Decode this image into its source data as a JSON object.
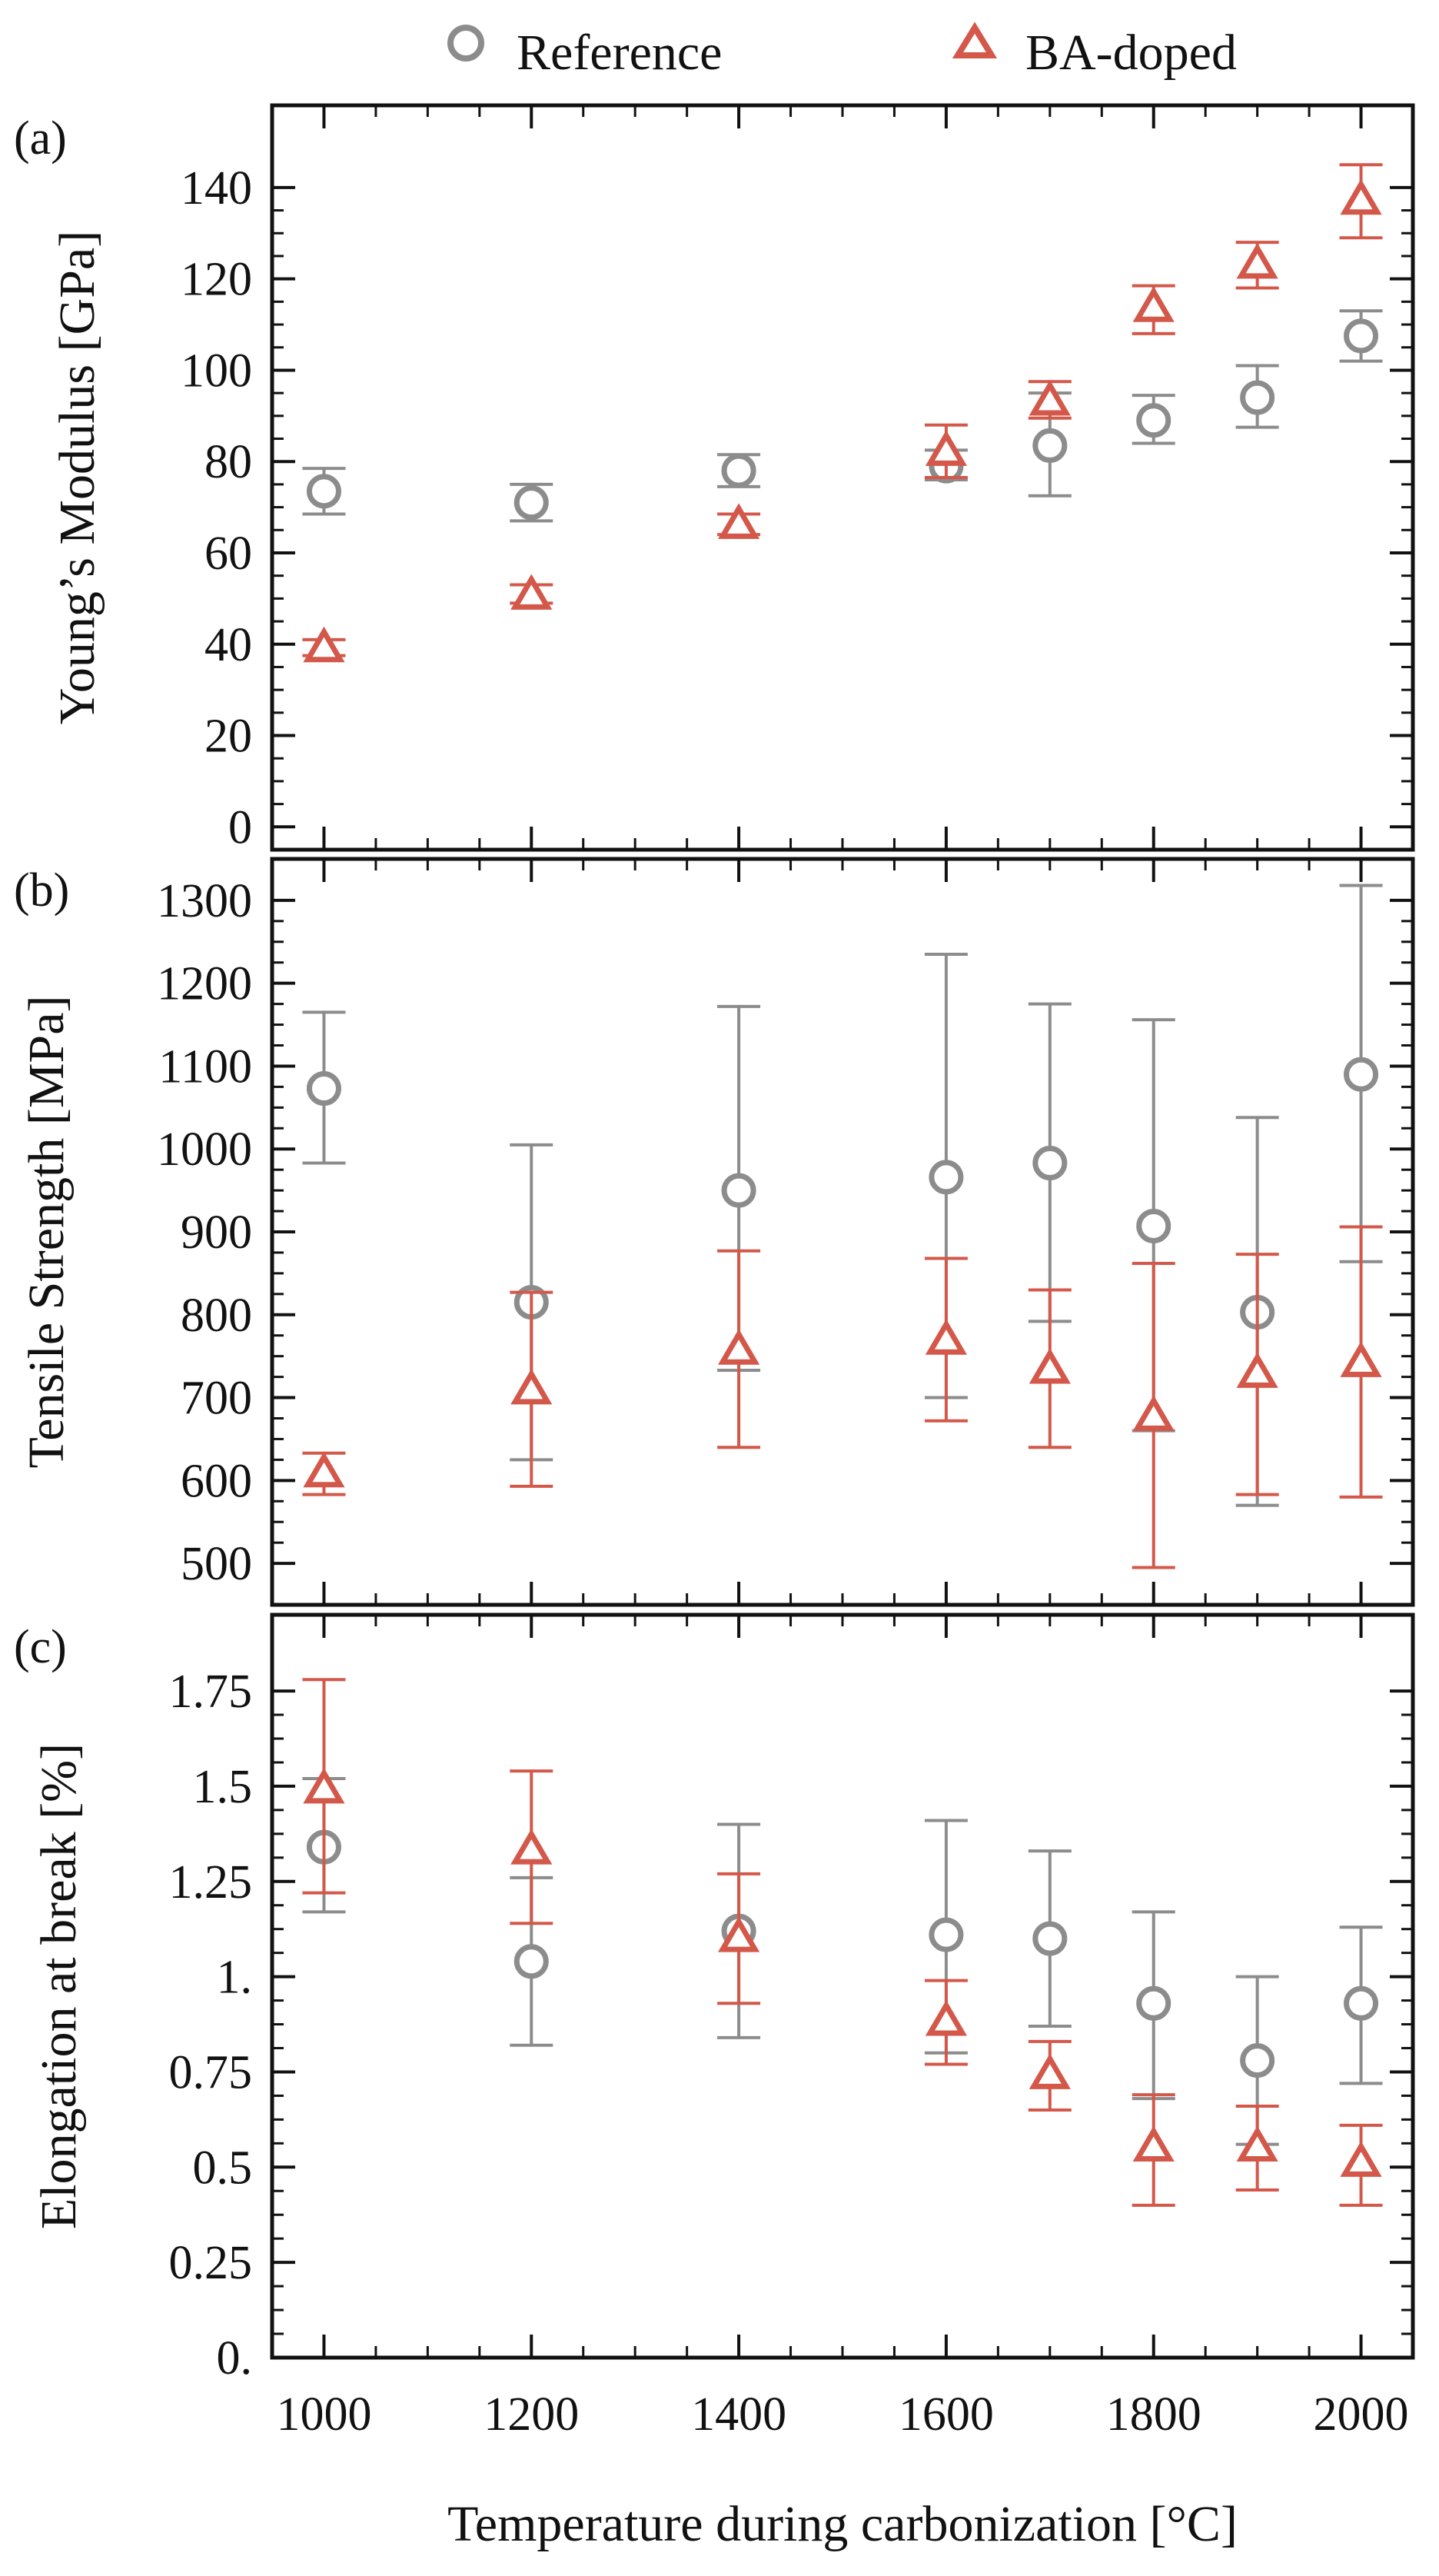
{
  "legend": {
    "reference_label": "Reference",
    "ba_label": "BA-doped"
  },
  "colors": {
    "reference": "#8c8c8c",
    "ba_doped": "#d4584a",
    "axes": "#111111"
  },
  "xaxis": {
    "label": "Temperature during carbonization [°C]",
    "ticks": [
      1000,
      1200,
      1400,
      1600,
      1800,
      2000
    ],
    "tick_labels": [
      "1000",
      "1200",
      "1400",
      "1600",
      "1800",
      "2000"
    ],
    "xlim": [
      950,
      2050
    ]
  },
  "chart_data": [
    {
      "type": "scatter",
      "panel_label": "(a)",
      "ylabel": "Young’s Modulus [GPa]",
      "ylim": [
        -5,
        158
      ],
      "yticks": [
        0,
        20,
        40,
        60,
        80,
        100,
        120,
        140
      ],
      "ytick_labels": [
        "0",
        "20",
        "40",
        "60",
        "80",
        "100",
        "120",
        "140"
      ],
      "x": [
        1000,
        1200,
        1400,
        1600,
        1700,
        1800,
        1900,
        2000
      ],
      "series": [
        {
          "name": "Reference",
          "marker": "circle",
          "values": [
            73.5,
            71,
            78,
            79,
            83.5,
            89,
            94,
            107.5
          ],
          "err_low": [
            68.5,
            67,
            74.5,
            76,
            72.5,
            84,
            87.5,
            102
          ],
          "err_high": [
            78.5,
            75,
            81.5,
            82.5,
            95,
            94.5,
            101,
            113
          ]
        },
        {
          "name": "BA-doped",
          "marker": "triangle",
          "values": [
            39,
            50.5,
            66,
            82,
            93,
            113.5,
            123,
            137
          ],
          "err_low": [
            37.5,
            49,
            64,
            76.5,
            89.5,
            108,
            118,
            129
          ],
          "err_high": [
            41,
            53,
            68.5,
            88,
            97.5,
            118.5,
            128,
            145
          ]
        }
      ]
    },
    {
      "type": "scatter",
      "panel_label": "(b)",
      "ylabel": "Tensile Strength [MPa]",
      "ylim": [
        450,
        1350
      ],
      "yticks": [
        500,
        600,
        700,
        800,
        900,
        1000,
        1100,
        1200,
        1300
      ],
      "ytick_labels": [
        "500",
        "600",
        "700",
        "800",
        "900",
        "1000",
        "1100",
        "1200",
        "1300"
      ],
      "x": [
        1000,
        1200,
        1400,
        1600,
        1700,
        1800,
        1900,
        2000
      ],
      "series": [
        {
          "name": "Reference",
          "marker": "circle",
          "values": [
            1073,
            815,
            950,
            966,
            983,
            907,
            803,
            1090
          ],
          "err_low": [
            983,
            625,
            733,
            700,
            792,
            660,
            570,
            864
          ],
          "err_high": [
            1165,
            1005,
            1172,
            1235,
            1175,
            1156,
            1038,
            1318
          ]
        },
        {
          "name": "BA-doped",
          "marker": "triangle",
          "values": [
            608,
            708,
            756,
            768,
            733,
            676,
            728,
            741
          ],
          "err_low": [
            583,
            593,
            640,
            672,
            640,
            495,
            583,
            580
          ],
          "err_high": [
            633,
            827,
            877,
            868,
            830,
            862,
            873,
            906
          ]
        }
      ]
    },
    {
      "type": "scatter",
      "panel_label": "(c)",
      "ylabel": "Elongation at break [%]",
      "ylim": [
        0,
        1.95
      ],
      "yticks": [
        0,
        0.25,
        0.5,
        0.75,
        1,
        1.25,
        1.5,
        1.75
      ],
      "ytick_labels": [
        "0.",
        "0.25",
        "0.5",
        "0.75",
        "1.",
        "1.25",
        "1.5",
        "1.75"
      ],
      "x": [
        1000,
        1200,
        1400,
        1600,
        1700,
        1800,
        1900,
        2000
      ],
      "series": [
        {
          "name": "Reference",
          "marker": "circle",
          "values": [
            1.34,
            1.04,
            1.12,
            1.11,
            1.1,
            0.93,
            0.78,
            0.93
          ],
          "err_low": [
            1.17,
            0.82,
            0.84,
            0.8,
            0.87,
            0.68,
            0.56,
            0.72
          ],
          "err_high": [
            1.52,
            1.26,
            1.4,
            1.41,
            1.33,
            1.17,
            1.0,
            1.13
          ]
        },
        {
          "name": "BA-doped",
          "marker": "triangle",
          "values": [
            1.49,
            1.33,
            1.1,
            0.88,
            0.74,
            0.55,
            0.55,
            0.51
          ],
          "err_low": [
            1.22,
            1.14,
            0.93,
            0.77,
            0.65,
            0.4,
            0.44,
            0.4
          ],
          "err_high": [
            1.78,
            1.54,
            1.27,
            0.99,
            0.83,
            0.69,
            0.66,
            0.61
          ]
        }
      ]
    }
  ]
}
